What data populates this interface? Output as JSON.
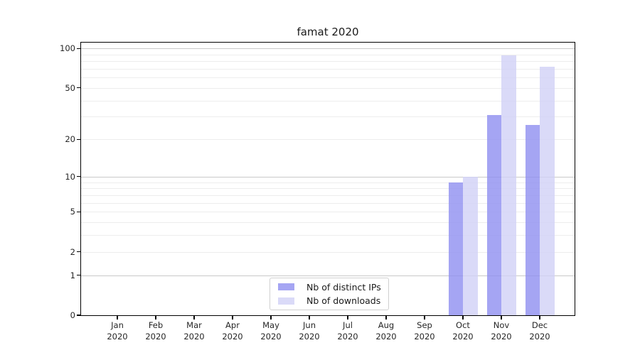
{
  "chart_data": {
    "type": "bar",
    "title": "famat 2020",
    "categories": [
      "Jan",
      "Feb",
      "Mar",
      "Apr",
      "May",
      "Jun",
      "Jul",
      "Aug",
      "Sep",
      "Oct",
      "Nov",
      "Dec"
    ],
    "category_year": "2020",
    "series": [
      {
        "name": "Nb of distinct IPs",
        "color": "#9191f0",
        "values": [
          0,
          0,
          0,
          0,
          0,
          0,
          0,
          0,
          0,
          9,
          31,
          26
        ]
      },
      {
        "name": "Nb of downloads",
        "color": "#d2d2f6",
        "values": [
          0,
          0,
          0,
          0,
          0,
          0,
          0,
          0,
          0,
          10,
          89,
          73
        ]
      }
    ],
    "yscale": "log1p",
    "ylim": [
      0,
      112
    ],
    "yticks_labeled": [
      0,
      1,
      2,
      5,
      10,
      20,
      50,
      100
    ],
    "grid_major": [
      1,
      10,
      100
    ],
    "grid_minor": [
      2,
      3,
      4,
      5,
      6,
      7,
      8,
      9,
      20,
      30,
      40,
      50,
      60,
      70,
      80,
      90
    ],
    "grid": "on",
    "legend_position": "lower center",
    "xlabel": "",
    "ylabel": ""
  }
}
